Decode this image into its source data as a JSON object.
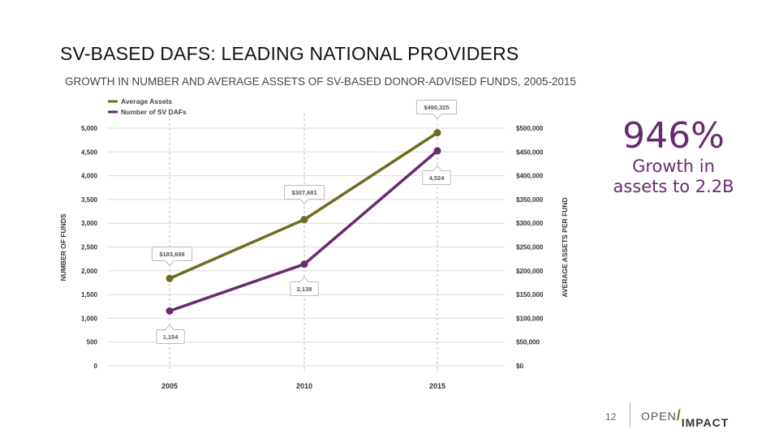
{
  "title": "SV-BASED DAFS: LEADING NATIONAL PROVIDERS",
  "subtitle": "GROWTH IN NUMBER AND AVERAGE ASSETS OF SV-BASED DONOR-ADVISED FUNDS, 2005-2015",
  "callout": {
    "big_number": "946%",
    "line1": "Growth in",
    "line2": "assets to 2.2B"
  },
  "footer": {
    "page_number": "12",
    "logo_part1": "OPEN",
    "logo_slash": "/",
    "logo_part2": "IMPACT"
  },
  "colors": {
    "average_assets": "#6f6c21",
    "number_of_dafs": "#6a2a71",
    "grid": "#d9d9d9"
  },
  "chart_data": {
    "type": "line",
    "x": [
      "2005",
      "2010",
      "2015"
    ],
    "left_axis": {
      "label": "NUMBER OF FUNDS",
      "range": [
        0,
        5000
      ],
      "ticks": [
        0,
        500,
        1000,
        1500,
        2000,
        2500,
        3000,
        3500,
        4000,
        4500,
        5000
      ],
      "tick_labels": [
        "0",
        "500",
        "1,000",
        "1,500",
        "2,000",
        "2,500",
        "3,000",
        "3,500",
        "4,000",
        "4,500",
        "5,000"
      ]
    },
    "right_axis": {
      "label": "AVERAGE ASSETS PER FUND",
      "range": [
        0,
        500000
      ],
      "ticks": [
        0,
        50000,
        100000,
        150000,
        200000,
        250000,
        300000,
        350000,
        400000,
        450000,
        500000
      ],
      "tick_labels": [
        "$0",
        "$50,000",
        "$100,000",
        "$150,000",
        "$200,000",
        "$250,000",
        "$300,000",
        "$350,000",
        "$400,000",
        "$450,000",
        "$500,000"
      ]
    },
    "series": [
      {
        "name": "Average Assets",
        "axis": "right",
        "values": [
          183698,
          307681,
          490325
        ],
        "labels": [
          "$183,698",
          "$307,681",
          "$490,325"
        ]
      },
      {
        "name": "Number of SV DAFs",
        "axis": "left",
        "values": [
          1154,
          2138,
          4524
        ],
        "labels": [
          "1,154",
          "2,138",
          "4,524"
        ]
      }
    ],
    "legend_position": "top-left",
    "grid": true
  }
}
